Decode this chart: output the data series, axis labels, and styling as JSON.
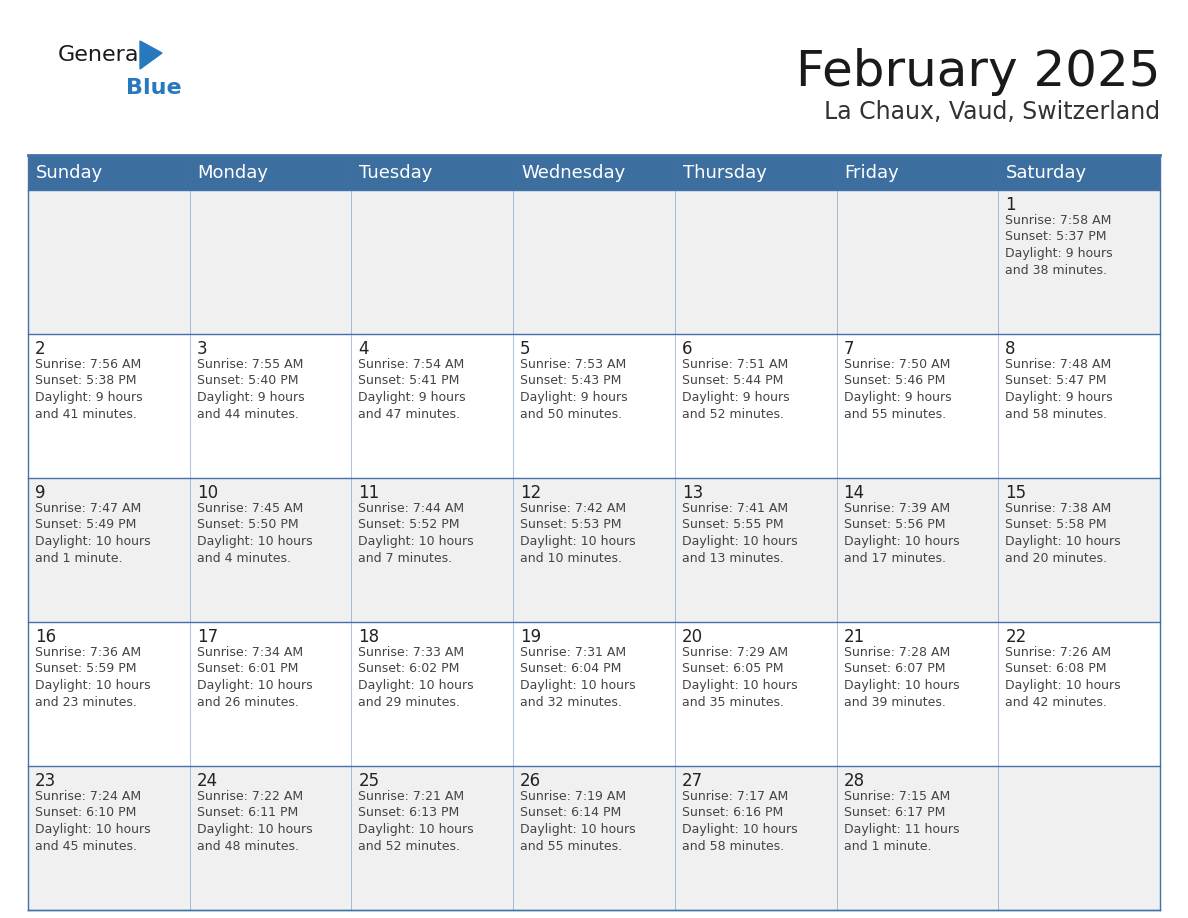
{
  "title": "February 2025",
  "subtitle": "La Chaux, Vaud, Switzerland",
  "days_of_week": [
    "Sunday",
    "Monday",
    "Tuesday",
    "Wednesday",
    "Thursday",
    "Friday",
    "Saturday"
  ],
  "header_bg": "#3c6fa0",
  "header_text": "#ffffff",
  "row_bg_1": "#f0f0f0",
  "row_bg_2": "#ffffff",
  "cell_border_color": "#4472a8",
  "day_number_color": "#222222",
  "info_text_color": "#444444",
  "calendar_data": [
    [
      null,
      null,
      null,
      null,
      null,
      null,
      {
        "day": 1,
        "sunrise": "7:58 AM",
        "sunset": "5:37 PM",
        "daylight_line1": "9 hours",
        "daylight_line2": "and 38 minutes."
      }
    ],
    [
      {
        "day": 2,
        "sunrise": "7:56 AM",
        "sunset": "5:38 PM",
        "daylight_line1": "9 hours",
        "daylight_line2": "and 41 minutes."
      },
      {
        "day": 3,
        "sunrise": "7:55 AM",
        "sunset": "5:40 PM",
        "daylight_line1": "9 hours",
        "daylight_line2": "and 44 minutes."
      },
      {
        "day": 4,
        "sunrise": "7:54 AM",
        "sunset": "5:41 PM",
        "daylight_line1": "9 hours",
        "daylight_line2": "and 47 minutes."
      },
      {
        "day": 5,
        "sunrise": "7:53 AM",
        "sunset": "5:43 PM",
        "daylight_line1": "9 hours",
        "daylight_line2": "and 50 minutes."
      },
      {
        "day": 6,
        "sunrise": "7:51 AM",
        "sunset": "5:44 PM",
        "daylight_line1": "9 hours",
        "daylight_line2": "and 52 minutes."
      },
      {
        "day": 7,
        "sunrise": "7:50 AM",
        "sunset": "5:46 PM",
        "daylight_line1": "9 hours",
        "daylight_line2": "and 55 minutes."
      },
      {
        "day": 8,
        "sunrise": "7:48 AM",
        "sunset": "5:47 PM",
        "daylight_line1": "9 hours",
        "daylight_line2": "and 58 minutes."
      }
    ],
    [
      {
        "day": 9,
        "sunrise": "7:47 AM",
        "sunset": "5:49 PM",
        "daylight_line1": "10 hours",
        "daylight_line2": "and 1 minute."
      },
      {
        "day": 10,
        "sunrise": "7:45 AM",
        "sunset": "5:50 PM",
        "daylight_line1": "10 hours",
        "daylight_line2": "and 4 minutes."
      },
      {
        "day": 11,
        "sunrise": "7:44 AM",
        "sunset": "5:52 PM",
        "daylight_line1": "10 hours",
        "daylight_line2": "and 7 minutes."
      },
      {
        "day": 12,
        "sunrise": "7:42 AM",
        "sunset": "5:53 PM",
        "daylight_line1": "10 hours",
        "daylight_line2": "and 10 minutes."
      },
      {
        "day": 13,
        "sunrise": "7:41 AM",
        "sunset": "5:55 PM",
        "daylight_line1": "10 hours",
        "daylight_line2": "and 13 minutes."
      },
      {
        "day": 14,
        "sunrise": "7:39 AM",
        "sunset": "5:56 PM",
        "daylight_line1": "10 hours",
        "daylight_line2": "and 17 minutes."
      },
      {
        "day": 15,
        "sunrise": "7:38 AM",
        "sunset": "5:58 PM",
        "daylight_line1": "10 hours",
        "daylight_line2": "and 20 minutes."
      }
    ],
    [
      {
        "day": 16,
        "sunrise": "7:36 AM",
        "sunset": "5:59 PM",
        "daylight_line1": "10 hours",
        "daylight_line2": "and 23 minutes."
      },
      {
        "day": 17,
        "sunrise": "7:34 AM",
        "sunset": "6:01 PM",
        "daylight_line1": "10 hours",
        "daylight_line2": "and 26 minutes."
      },
      {
        "day": 18,
        "sunrise": "7:33 AM",
        "sunset": "6:02 PM",
        "daylight_line1": "10 hours",
        "daylight_line2": "and 29 minutes."
      },
      {
        "day": 19,
        "sunrise": "7:31 AM",
        "sunset": "6:04 PM",
        "daylight_line1": "10 hours",
        "daylight_line2": "and 32 minutes."
      },
      {
        "day": 20,
        "sunrise": "7:29 AM",
        "sunset": "6:05 PM",
        "daylight_line1": "10 hours",
        "daylight_line2": "and 35 minutes."
      },
      {
        "day": 21,
        "sunrise": "7:28 AM",
        "sunset": "6:07 PM",
        "daylight_line1": "10 hours",
        "daylight_line2": "and 39 minutes."
      },
      {
        "day": 22,
        "sunrise": "7:26 AM",
        "sunset": "6:08 PM",
        "daylight_line1": "10 hours",
        "daylight_line2": "and 42 minutes."
      }
    ],
    [
      {
        "day": 23,
        "sunrise": "7:24 AM",
        "sunset": "6:10 PM",
        "daylight_line1": "10 hours",
        "daylight_line2": "and 45 minutes."
      },
      {
        "day": 24,
        "sunrise": "7:22 AM",
        "sunset": "6:11 PM",
        "daylight_line1": "10 hours",
        "daylight_line2": "and 48 minutes."
      },
      {
        "day": 25,
        "sunrise": "7:21 AM",
        "sunset": "6:13 PM",
        "daylight_line1": "10 hours",
        "daylight_line2": "and 52 minutes."
      },
      {
        "day": 26,
        "sunrise": "7:19 AM",
        "sunset": "6:14 PM",
        "daylight_line1": "10 hours",
        "daylight_line2": "and 55 minutes."
      },
      {
        "day": 27,
        "sunrise": "7:17 AM",
        "sunset": "6:16 PM",
        "daylight_line1": "10 hours",
        "daylight_line2": "and 58 minutes."
      },
      {
        "day": 28,
        "sunrise": "7:15 AM",
        "sunset": "6:17 PM",
        "daylight_line1": "11 hours",
        "daylight_line2": "and 1 minute."
      },
      null
    ]
  ],
  "logo_triangle_color": "#2878be",
  "title_fontsize": 36,
  "subtitle_fontsize": 17,
  "header_fontsize": 13,
  "day_number_fontsize": 12,
  "info_fontsize": 9
}
